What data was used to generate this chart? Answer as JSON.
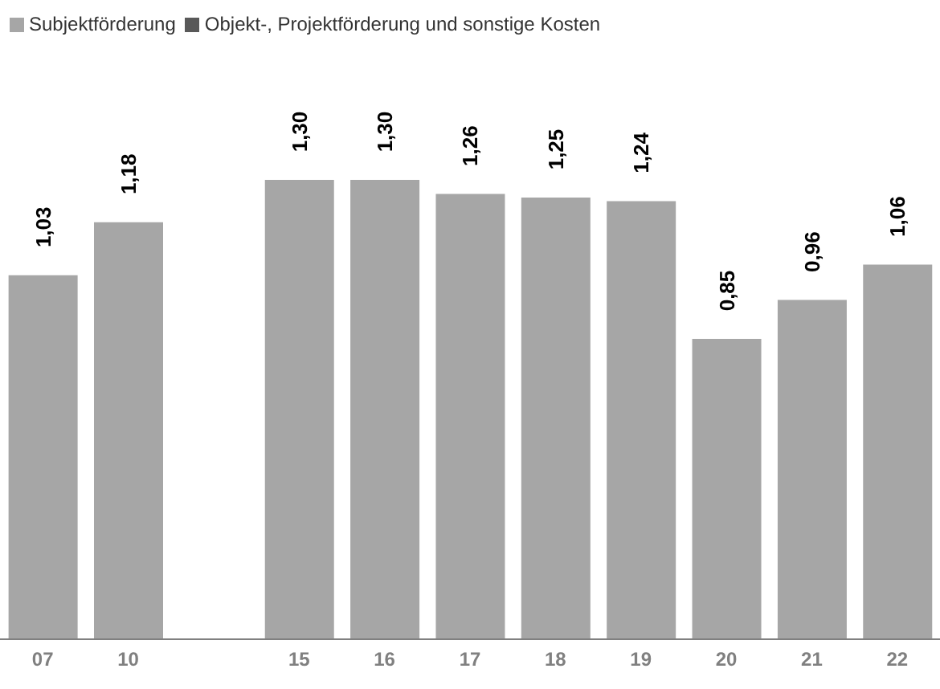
{
  "chart_data": {
    "type": "bar",
    "stacked": true,
    "categories": [
      "07",
      "10",
      null,
      "15",
      "16",
      "17",
      "18",
      "19",
      "20",
      "21",
      "22"
    ],
    "series": [
      {
        "name": "Subjektförderung",
        "color": "#a6a6a6",
        "values": [
          1.03,
          1.18,
          null,
          1.3,
          1.3,
          1.26,
          1.25,
          1.24,
          0.85,
          0.96,
          1.06
        ],
        "value_labels": [
          "1,03",
          "1,18",
          null,
          "1,30",
          "1,30",
          "1,26",
          "1,25",
          "1,24",
          "0,85",
          "0,96",
          "1,06"
        ]
      },
      {
        "name": "Objekt-, Projektförderung und sonstige Kosten",
        "color": "#595959",
        "values": [
          null,
          null,
          null,
          null,
          null,
          null,
          null,
          null,
          null,
          null,
          null
        ]
      }
    ],
    "legend": "top left"
  }
}
